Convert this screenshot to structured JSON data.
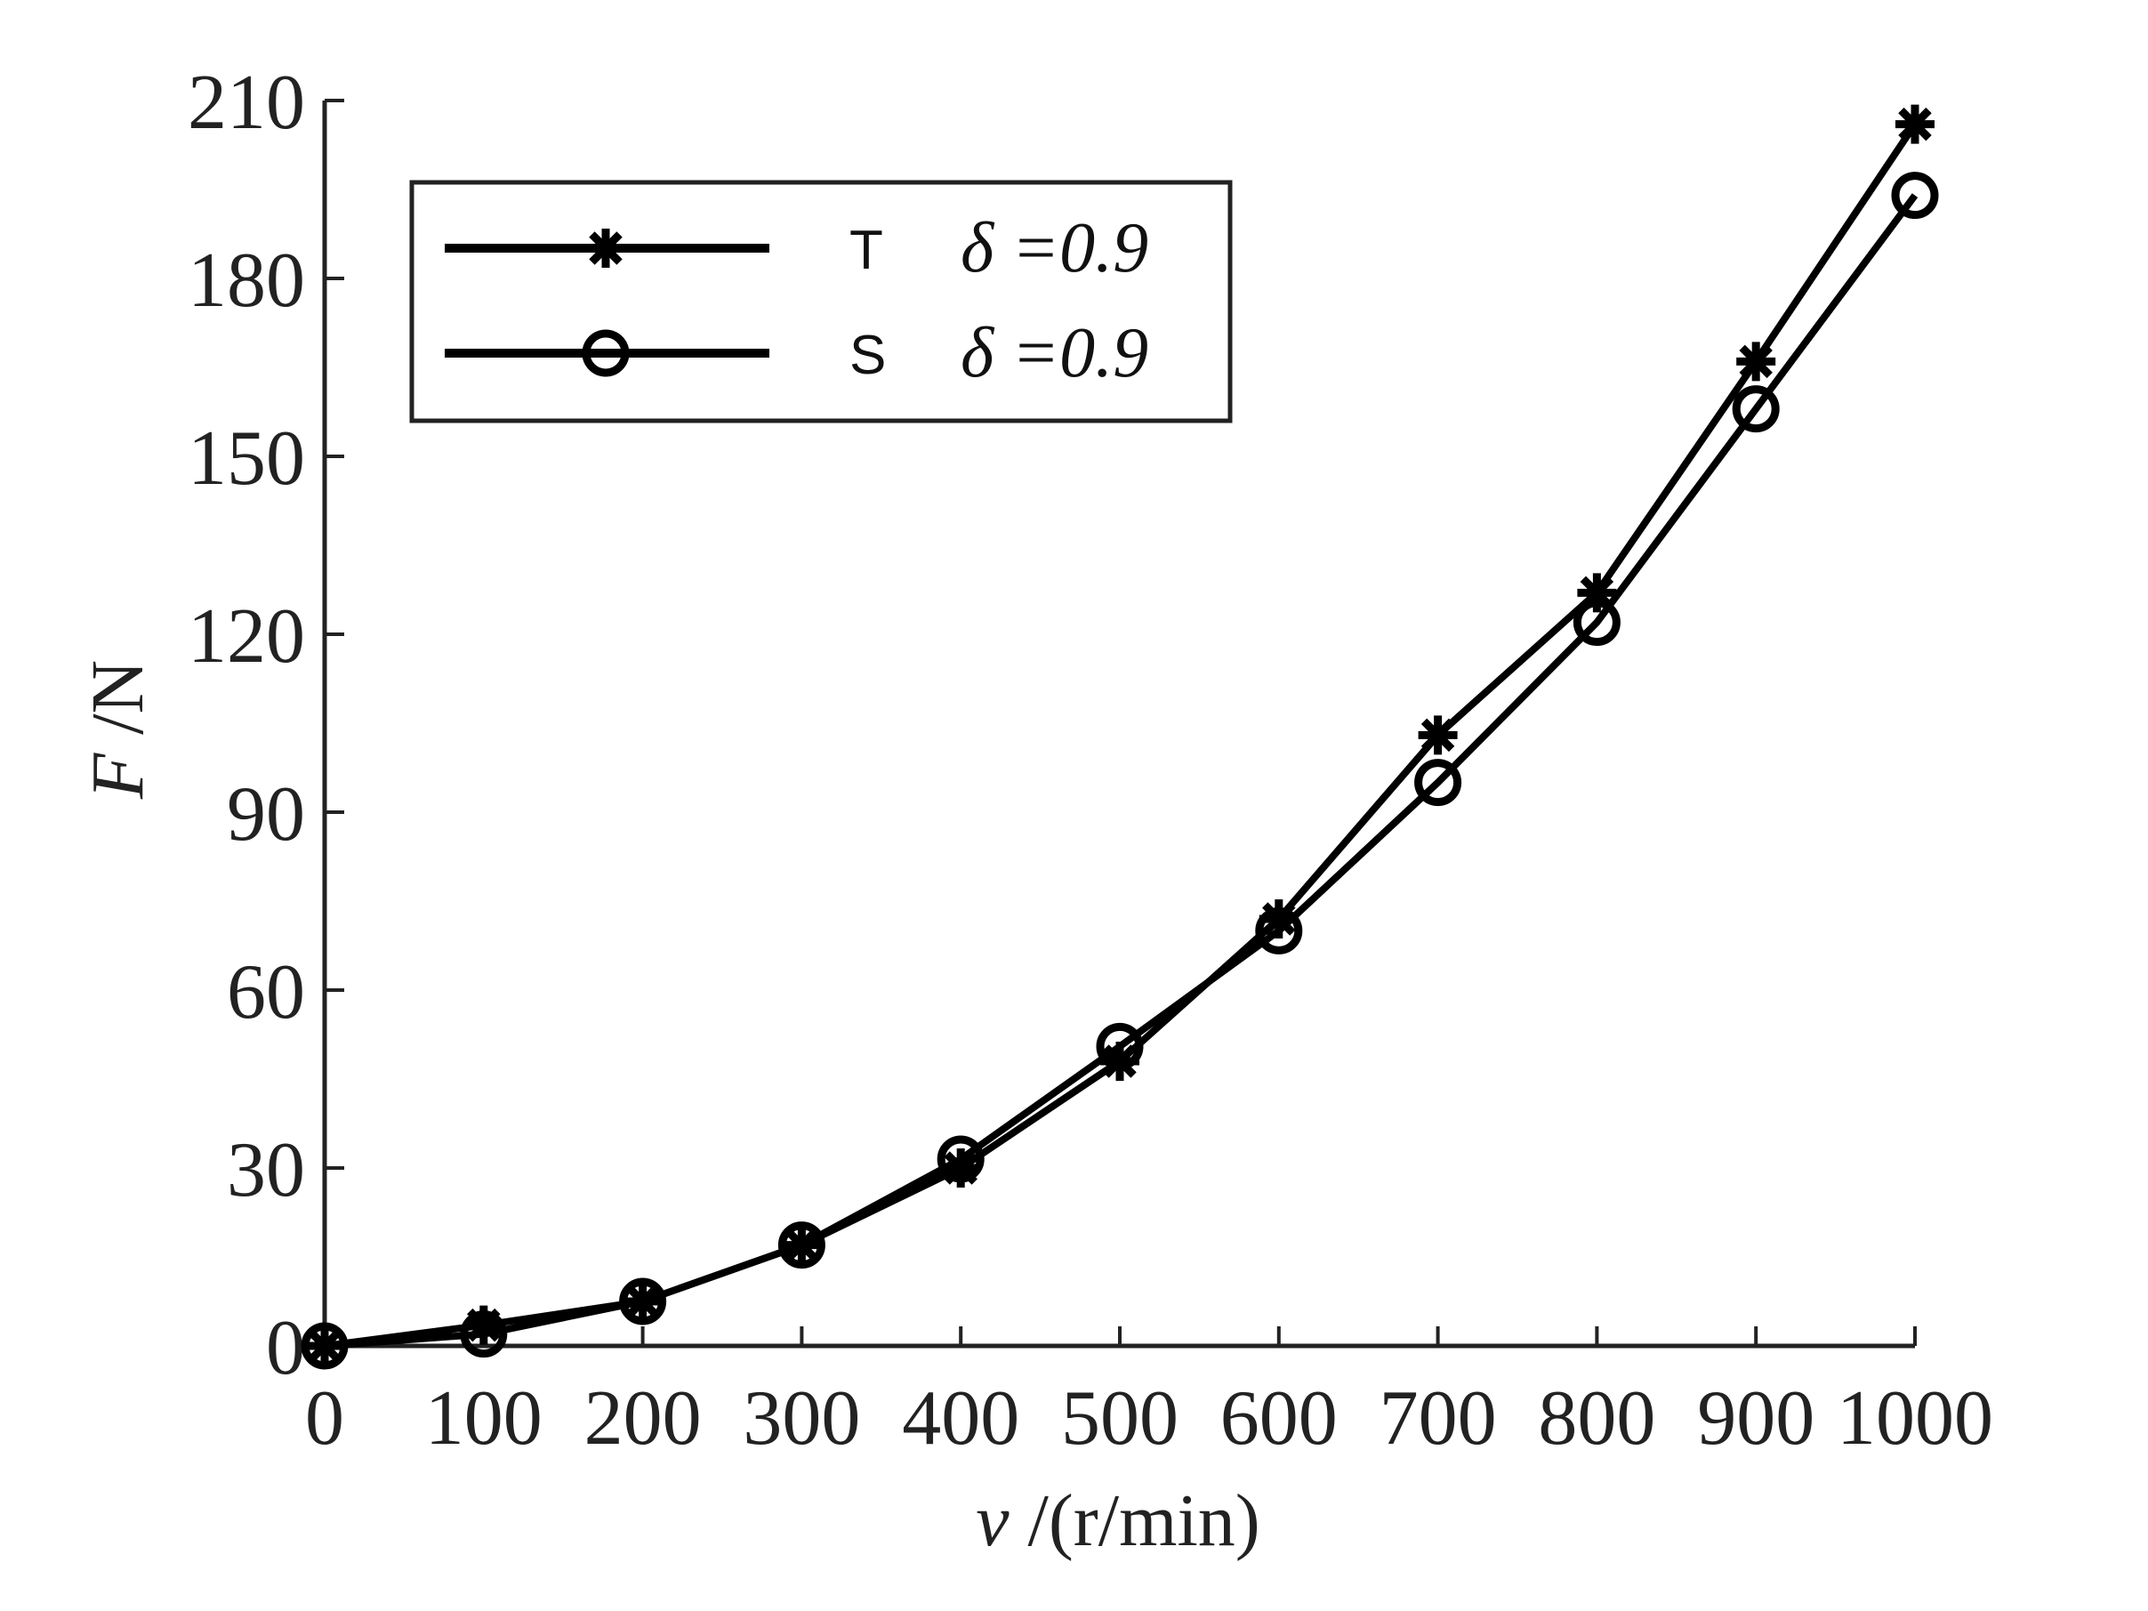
{
  "chart_data": {
    "type": "line",
    "title": "",
    "xlabel": "v /(r/min)",
    "xlabel_var": "v",
    "xlabel_unit": " /(r/min)",
    "ylabel": "F /N",
    "ylabel_var": "F",
    "ylabel_unit": " /N",
    "x": [
      0,
      100,
      200,
      300,
      400,
      500,
      600,
      700,
      800,
      900,
      1000
    ],
    "xlim": [
      0,
      1000
    ],
    "ylim": [
      0,
      210
    ],
    "xticks": [
      "0",
      "100",
      "200",
      "300",
      "400",
      "500",
      "600",
      "700",
      "800",
      "900",
      "1000"
    ],
    "yticks": [
      "0",
      "30",
      "60",
      "90",
      "120",
      "150",
      "180",
      "210"
    ],
    "grid": false,
    "legend_position": "upper left",
    "series": [
      {
        "name": "T δ =0.9",
        "label_letter": "T",
        "label_param": "δ =0.9",
        "marker": "asterisk",
        "color": "#000000",
        "values": [
          0,
          3.5,
          7.5,
          17,
          30,
          48,
          72,
          103,
          127,
          166,
          206
        ]
      },
      {
        "name": "S δ =0.9",
        "label_letter": "S",
        "label_param": "δ =0.9",
        "marker": "circle",
        "color": "#000000",
        "values": [
          0,
          2,
          7.5,
          17,
          31.5,
          50.5,
          70,
          95,
          122,
          158,
          194
        ]
      }
    ]
  }
}
